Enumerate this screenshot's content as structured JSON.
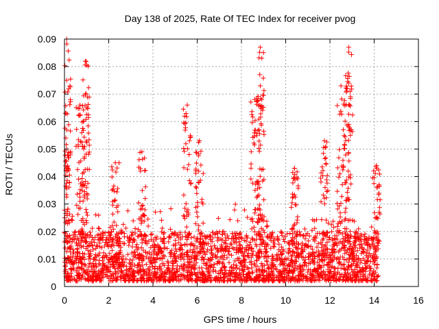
{
  "chart_data": {
    "type": "scatter",
    "title": "Day 138 of 2025, Rate Of TEC Index for receiver pvog",
    "xlabel": "GPS time / hours",
    "ylabel": "ROTI / TECUs",
    "xlim": [
      0,
      16
    ],
    "ylim": [
      0,
      0.09
    ],
    "xticks": [
      0,
      2,
      4,
      6,
      8,
      10,
      12,
      14,
      16
    ],
    "yticks": [
      0,
      0.01,
      0.02,
      0.03,
      0.04,
      0.05,
      0.06,
      0.07,
      0.08,
      0.09
    ],
    "xtick_labels": [
      "0",
      "2",
      "4",
      "6",
      "8",
      "10",
      "12",
      "14",
      "16"
    ],
    "ytick_labels": [
      "0",
      "0.01",
      "0.02",
      "0.03",
      "0.04",
      "0.05",
      "0.06",
      "0.07",
      "0.08",
      "0.09"
    ],
    "grid": true,
    "marker": "+",
    "series": [
      {
        "name": "ROTI",
        "color": "#ff0000",
        "data_range_x": [
          0.0,
          14.2
        ],
        "baseline_range_y": [
          0.002,
          0.02
        ],
        "peaks": [
          {
            "x": 0.1,
            "y": 0.09
          },
          {
            "x": 0.1,
            "y": 0.075
          },
          {
            "x": 0.1,
            "y": 0.05
          },
          {
            "x": 0.7,
            "y": 0.066
          },
          {
            "x": 0.95,
            "y": 0.082
          },
          {
            "x": 0.95,
            "y": 0.07
          },
          {
            "x": 2.3,
            "y": 0.045
          },
          {
            "x": 3.5,
            "y": 0.049
          },
          {
            "x": 5.55,
            "y": 0.066
          },
          {
            "x": 6.1,
            "y": 0.053
          },
          {
            "x": 8.85,
            "y": 0.087
          },
          {
            "x": 8.85,
            "y": 0.073
          },
          {
            "x": 8.6,
            "y": 0.068
          },
          {
            "x": 10.4,
            "y": 0.043
          },
          {
            "x": 11.75,
            "y": 0.053
          },
          {
            "x": 12.5,
            "y": 0.073
          },
          {
            "x": 12.85,
            "y": 0.087
          },
          {
            "x": 12.85,
            "y": 0.074
          },
          {
            "x": 14.1,
            "y": 0.044
          }
        ]
      }
    ]
  }
}
